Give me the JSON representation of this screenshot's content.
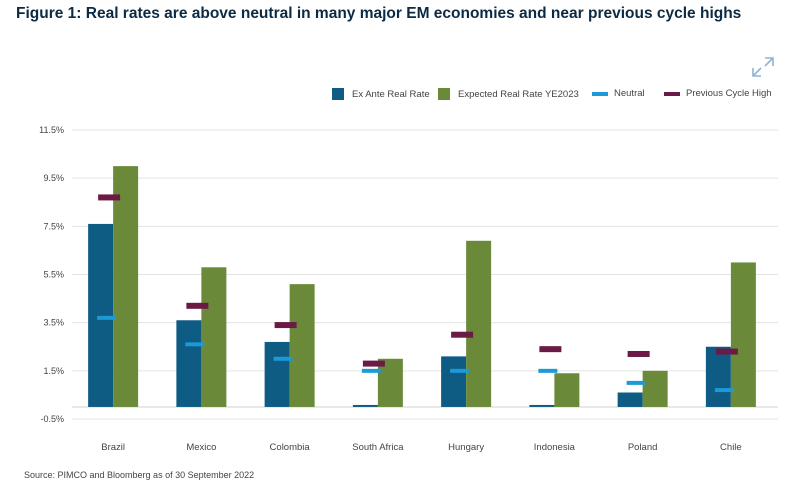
{
  "page": {
    "title": "Figure 1: Real rates are above neutral in many major EM economies and near previous cycle highs",
    "source": "Source: PIMCO and Bloomberg as of 30 September 2022",
    "expand_icon": "expand-arrows-icon"
  },
  "colors": {
    "ex_ante": "#0e5b84",
    "expected": "#6a8a3a",
    "neutral": "#1c9ad6",
    "previous_high": "#6b1a45",
    "grid": "#e3e3e3",
    "title": "#0b2a44"
  },
  "legend": [
    {
      "label": "Ex Ante Real Rate",
      "shape": "box",
      "color": "#0e5b84"
    },
    {
      "label": "Expected Real Rate YE2023",
      "shape": "box",
      "color": "#6a8a3a"
    },
    {
      "label": "Neutral",
      "shape": "line",
      "color": "#1c9ad6"
    },
    {
      "label": "Previous Cycle High",
      "shape": "line",
      "color": "#6b1a45"
    }
  ],
  "chart_data": {
    "type": "bar",
    "categories": [
      "Brazil",
      "Mexico",
      "Colombia",
      "South Africa",
      "Hungary",
      "Indonesia",
      "Poland",
      "Chile"
    ],
    "series": [
      {
        "name": "Ex Ante Real Rate",
        "kind": "bar",
        "values": [
          7.6,
          3.6,
          2.7,
          0.0,
          2.1,
          0.0,
          0.6,
          2.5
        ]
      },
      {
        "name": "Expected Real Rate YE2023",
        "kind": "bar",
        "values": [
          10.0,
          5.8,
          5.1,
          2.0,
          6.9,
          1.4,
          1.5,
          6.0
        ]
      },
      {
        "name": "Neutral",
        "kind": "marker",
        "values": [
          3.7,
          2.6,
          2.0,
          1.5,
          1.5,
          1.5,
          1.0,
          0.7
        ]
      },
      {
        "name": "Previous Cycle High",
        "kind": "marker",
        "values": [
          8.7,
          4.2,
          3.4,
          1.8,
          3.0,
          2.4,
          2.2,
          2.3
        ]
      }
    ],
    "yticks": [
      "11.5%",
      "9.5%",
      "7.5%",
      "5.5%",
      "3.5%",
      "1.5%",
      "-0.5%"
    ],
    "ytick_values": [
      11.5,
      9.5,
      7.5,
      5.5,
      3.5,
      1.5,
      -0.5
    ],
    "ylim": [
      -0.5,
      11.5
    ],
    "grid": true,
    "legend_position": "top-right"
  }
}
